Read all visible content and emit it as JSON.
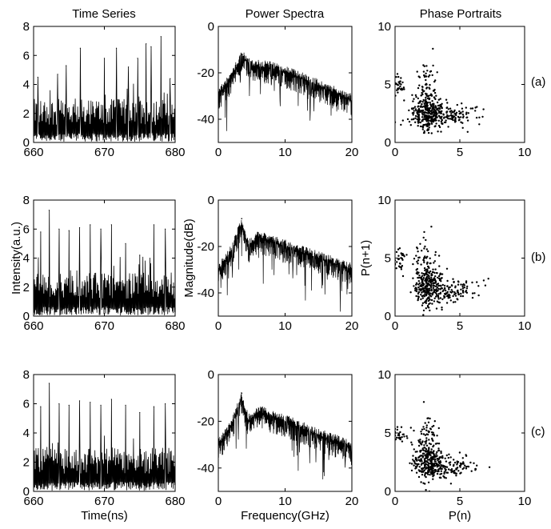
{
  "figure": {
    "column_titles": [
      "Time Series",
      "Power Spectra",
      "Phase Portraits"
    ],
    "row_labels": [
      "(a)",
      "(b)",
      "(c)"
    ]
  },
  "chart_data": [
    {
      "type": "line",
      "panel": "time-series-a",
      "xlim": [
        660,
        680
      ],
      "ylim": [
        0,
        8
      ],
      "xticks": [
        660,
        670,
        680
      ],
      "yticks": [
        0,
        2,
        4,
        6,
        8
      ],
      "xlabel": "",
      "ylabel": "",
      "peaks": [
        {
          "x": 660.6,
          "y": 4.5
        },
        {
          "x": 663.4,
          "y": 4.7
        },
        {
          "x": 664.6,
          "y": 5.3
        },
        {
          "x": 666.6,
          "y": 6.5
        },
        {
          "x": 670.0,
          "y": 5.8
        },
        {
          "x": 671.7,
          "y": 6.5
        },
        {
          "x": 673.4,
          "y": 5.2
        },
        {
          "x": 674.7,
          "y": 5.8
        },
        {
          "x": 675.9,
          "y": 6.8
        },
        {
          "x": 676.6,
          "y": 6.6
        },
        {
          "x": 678.0,
          "y": 7.3
        },
        {
          "x": 679.3,
          "y": 4.4
        }
      ],
      "baseline_range": [
        0,
        3
      ],
      "description_peaks_count": 12
    },
    {
      "type": "line",
      "panel": "power-spectra-a",
      "xlim": [
        0,
        20
      ],
      "ylim": [
        -50,
        0
      ],
      "xticks": [
        0,
        10,
        20
      ],
      "yticks": [
        0,
        -20,
        -40
      ],
      "xlabel": "",
      "ylabel": "",
      "envelope": [
        {
          "x": 0,
          "y": -30
        },
        {
          "x": 2,
          "y": -22
        },
        {
          "x": 3.5,
          "y": -13
        },
        {
          "x": 5,
          "y": -17
        },
        {
          "x": 8,
          "y": -18
        },
        {
          "x": 12,
          "y": -22
        },
        {
          "x": 16,
          "y": -27
        },
        {
          "x": 20,
          "y": -32
        }
      ],
      "peak": {
        "x": 3.5,
        "y": -12
      }
    },
    {
      "type": "scatter",
      "panel": "phase-portrait-a",
      "xlim": [
        0,
        10
      ],
      "ylim": [
        0,
        10
      ],
      "xticks": [
        0,
        5,
        10
      ],
      "yticks": [
        0,
        5,
        10
      ],
      "xlabel": "",
      "ylabel": "",
      "clusters": [
        {
          "cx": 2.5,
          "cy": 2.5,
          "sx": 0.6,
          "sy": 0.8,
          "n": 260
        },
        {
          "cx": 4.0,
          "cy": 2.3,
          "sx": 1.2,
          "sy": 0.5,
          "n": 140
        },
        {
          "cx": 2.4,
          "cy": 4.5,
          "sx": 0.4,
          "sy": 1.5,
          "n": 90
        },
        {
          "cx": 0.3,
          "cy": 5.0,
          "sx": 0.25,
          "sy": 0.4,
          "n": 30
        }
      ]
    },
    {
      "type": "line",
      "panel": "time-series-b",
      "xlim": [
        660,
        680
      ],
      "ylim": [
        0,
        8
      ],
      "xticks": [
        660,
        670,
        680
      ],
      "yticks": [
        0,
        2,
        4,
        6,
        8
      ],
      "xlabel": "",
      "ylabel": "Intensity(a.u.)",
      "peaks": [
        {
          "x": 661.0,
          "y": 5.8
        },
        {
          "x": 662.2,
          "y": 7.3
        },
        {
          "x": 663.6,
          "y": 6.0
        },
        {
          "x": 665.0,
          "y": 5.9
        },
        {
          "x": 666.5,
          "y": 6.1
        },
        {
          "x": 668.0,
          "y": 6.3
        },
        {
          "x": 669.5,
          "y": 6.0
        },
        {
          "x": 671.0,
          "y": 6.3
        },
        {
          "x": 673.0,
          "y": 5.0
        },
        {
          "x": 675.0,
          "y": 4.2
        },
        {
          "x": 677.0,
          "y": 6.3
        },
        {
          "x": 678.6,
          "y": 6.0
        }
      ],
      "baseline_range": [
        0,
        3
      ]
    },
    {
      "type": "line",
      "panel": "power-spectra-b",
      "xlim": [
        0,
        20
      ],
      "ylim": [
        -50,
        0
      ],
      "xticks": [
        0,
        10,
        20
      ],
      "yticks": [
        0,
        -20,
        -40
      ],
      "xlabel": "",
      "ylabel": "Magnitude(dB)",
      "envelope": [
        {
          "x": 0,
          "y": -30
        },
        {
          "x": 2,
          "y": -22
        },
        {
          "x": 3.5,
          "y": -10
        },
        {
          "x": 4.5,
          "y": -20
        },
        {
          "x": 6,
          "y": -16
        },
        {
          "x": 10,
          "y": -20
        },
        {
          "x": 15,
          "y": -25
        },
        {
          "x": 20,
          "y": -30
        }
      ],
      "peak": {
        "x": 3.5,
        "y": -8
      }
    },
    {
      "type": "scatter",
      "panel": "phase-portrait-b",
      "xlim": [
        0,
        10
      ],
      "ylim": [
        0,
        10
      ],
      "xticks": [
        0,
        5,
        10
      ],
      "yticks": [
        0,
        5,
        10
      ],
      "xlabel": "",
      "ylabel": "P(n+1)",
      "clusters": [
        {
          "cx": 2.5,
          "cy": 2.5,
          "sx": 0.6,
          "sy": 0.8,
          "n": 220
        },
        {
          "cx": 4.2,
          "cy": 2.2,
          "sx": 1.2,
          "sy": 0.5,
          "n": 130
        },
        {
          "cx": 2.4,
          "cy": 4.2,
          "sx": 0.4,
          "sy": 1.4,
          "n": 90
        },
        {
          "cx": 0.3,
          "cy": 4.8,
          "sx": 0.25,
          "sy": 0.4,
          "n": 30
        }
      ]
    },
    {
      "type": "line",
      "panel": "time-series-c",
      "xlim": [
        660,
        680
      ],
      "ylim": [
        0,
        8
      ],
      "xticks": [
        660,
        670,
        680
      ],
      "yticks": [
        0,
        2,
        4,
        6,
        8
      ],
      "xlabel": "Time(ns)",
      "ylabel": "",
      "peaks": [
        {
          "x": 661.0,
          "y": 5.8
        },
        {
          "x": 662.2,
          "y": 7.4
        },
        {
          "x": 663.6,
          "y": 6.0
        },
        {
          "x": 665.0,
          "y": 5.9
        },
        {
          "x": 666.5,
          "y": 6.2
        },
        {
          "x": 668.0,
          "y": 6.1
        },
        {
          "x": 669.5,
          "y": 5.9
        },
        {
          "x": 671.0,
          "y": 6.3
        },
        {
          "x": 673.0,
          "y": 5.9
        },
        {
          "x": 675.0,
          "y": 5.4
        },
        {
          "x": 677.0,
          "y": 5.8
        },
        {
          "x": 678.6,
          "y": 6.0
        }
      ],
      "baseline_range": [
        0,
        3
      ]
    },
    {
      "type": "line",
      "panel": "power-spectra-c",
      "xlim": [
        0,
        20
      ],
      "ylim": [
        -50,
        0
      ],
      "xticks": [
        0,
        10,
        20
      ],
      "yticks": [
        0,
        -20,
        -40
      ],
      "xlabel": "Frequency(GHz)",
      "ylabel": "",
      "envelope": [
        {
          "x": 0,
          "y": -30
        },
        {
          "x": 2,
          "y": -22
        },
        {
          "x": 3.5,
          "y": -10
        },
        {
          "x": 4.5,
          "y": -20
        },
        {
          "x": 6,
          "y": -16
        },
        {
          "x": 10,
          "y": -20
        },
        {
          "x": 15,
          "y": -26
        },
        {
          "x": 20,
          "y": -31
        }
      ],
      "peak": {
        "x": 3.5,
        "y": -8
      }
    },
    {
      "type": "scatter",
      "panel": "phase-portrait-c",
      "xlim": [
        0,
        10
      ],
      "ylim": [
        0,
        10
      ],
      "xticks": [
        0,
        5,
        10
      ],
      "yticks": [
        0,
        5,
        10
      ],
      "xlabel": "P(n)",
      "ylabel": "",
      "clusters": [
        {
          "cx": 2.5,
          "cy": 2.5,
          "sx": 0.6,
          "sy": 0.8,
          "n": 220
        },
        {
          "cx": 4.2,
          "cy": 2.2,
          "sx": 1.2,
          "sy": 0.5,
          "n": 130
        },
        {
          "cx": 2.4,
          "cy": 4.2,
          "sx": 0.4,
          "sy": 1.4,
          "n": 90
        },
        {
          "cx": 0.3,
          "cy": 4.8,
          "sx": 0.25,
          "sy": 0.4,
          "n": 30
        }
      ]
    }
  ]
}
